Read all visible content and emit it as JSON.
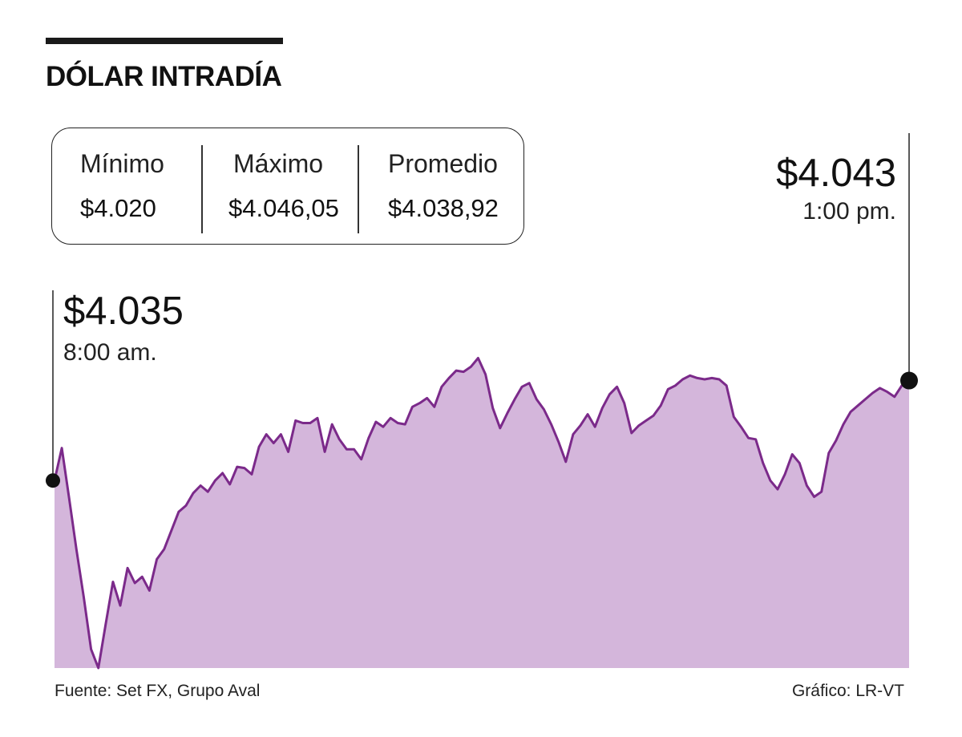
{
  "header": {
    "title": "DÓLAR INTRADÍA"
  },
  "stats": {
    "min_label": "Mínimo",
    "min_value": "$4.020",
    "max_label": "Máximo",
    "max_value": "$4.046,05",
    "avg_label": "Promedio",
    "avg_value": "$4.038,92"
  },
  "callouts": {
    "open_value": "$4.035",
    "open_time": "8:00 am.",
    "close_value": "$4.043",
    "close_time": "1:00 pm."
  },
  "footer": {
    "source": "Fuente: Set FX, Grupo Aval",
    "credit": "Gráfico: LR-VT"
  },
  "colors": {
    "line": "#7b2a8a",
    "fill": "#d4b6db",
    "marker": "#111111"
  },
  "chart_data": {
    "type": "area",
    "x_start": "8:00 am.",
    "x_end": "1:00 pm.",
    "ylim": [
      4020,
      4046.05
    ],
    "values": [
      4035,
      4037.6,
      4033.6,
      4029.5,
      4025.7,
      4021.5,
      4020,
      4023.5,
      4026.9,
      4025,
      4028,
      4026.8,
      4027.3,
      4026.2,
      4028.7,
      4029.5,
      4031,
      4032.5,
      4033,
      4034,
      4034.6,
      4034.1,
      4035,
      4035.6,
      4034.7,
      4036.1,
      4036,
      4035.5,
      4037.7,
      4038.7,
      4038,
      4038.7,
      4037.3,
      4039.8,
      4039.6,
      4039.6,
      4040,
      4037.3,
      4039.5,
      4038.3,
      4037.5,
      4037.5,
      4036.7,
      4038.4,
      4039.7,
      4039.3,
      4040,
      4039.6,
      4039.5,
      4040.9,
      4041.2,
      4041.6,
      4040.9,
      4042.5,
      4043.2,
      4043.8,
      4043.7,
      4044.1,
      4044.8,
      4043.5,
      4040.8,
      4039.2,
      4040.4,
      4041.5,
      4042.5,
      4042.8,
      4041.5,
      4040.7,
      4039.5,
      4038.1,
      4036.5,
      4038.7,
      4039.4,
      4040.3,
      4039.3,
      4040.8,
      4041.9,
      4042.5,
      4041.2,
      4038.8,
      4039.4,
      4039.8,
      4040.2,
      4041,
      4042.3,
      4042.6,
      4043.1,
      4043.4,
      4043.2,
      4043.1,
      4043.2,
      4043.1,
      4042.6,
      4040.1,
      4039.3,
      4038.4,
      4038.3,
      4036.4,
      4035,
      4034.3,
      4035.5,
      4037.1,
      4036.4,
      4034.6,
      4033.7,
      4034.1,
      4037.2,
      4038.2,
      4039.5,
      4040.5,
      4041,
      4041.5,
      4042,
      4042.4,
      4042.1,
      4041.7,
      4042.6,
      4043
    ]
  }
}
